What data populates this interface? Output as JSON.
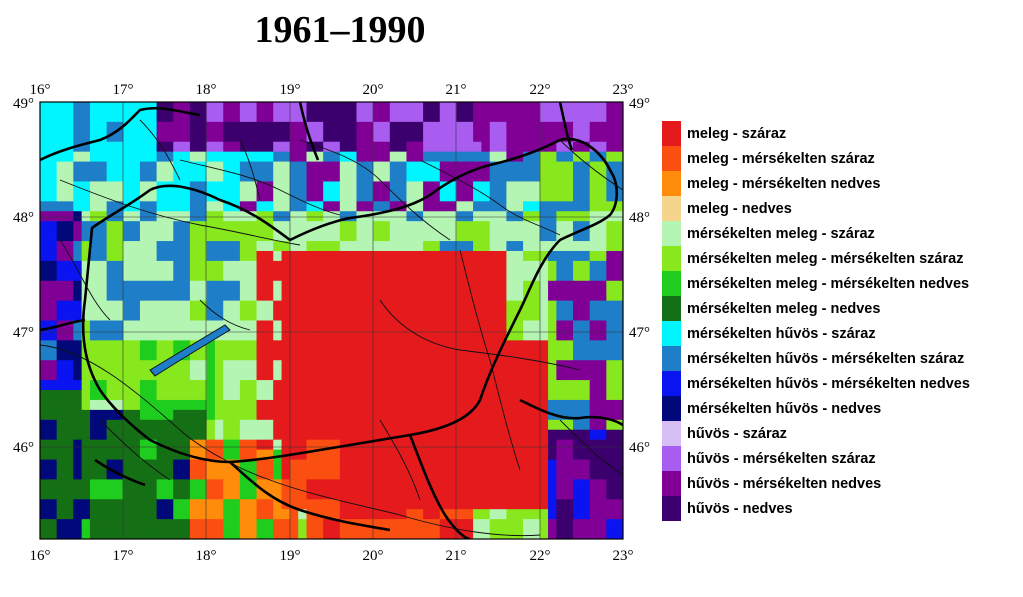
{
  "title": "1961–1990",
  "map": {
    "lon_ticks": [
      "16°",
      "17°",
      "18°",
      "19°",
      "20°",
      "21°",
      "22°",
      "23°"
    ],
    "lat_ticks": [
      "49°",
      "48°",
      "47°",
      "46°"
    ],
    "lon_range": [
      16,
      23
    ],
    "lat_range": [
      45.2,
      49
    ]
  },
  "legend": [
    {
      "label": "meleg - száraz",
      "color": "#e41a1c"
    },
    {
      "label": "meleg - mérsékelten száraz",
      "color": "#fa4f10"
    },
    {
      "label": "meleg - mérsékelten nedves",
      "color": "#ff8c0a"
    },
    {
      "label": "meleg - nedves",
      "color": "#f5d48c"
    },
    {
      "label": "mérsékelten meleg - száraz",
      "color": "#b4f5b4"
    },
    {
      "label": "mérsékelten meleg - mérsékelten száraz",
      "color": "#88e81e"
    },
    {
      "label": "mérsékelten meleg - mérsékelten nedves",
      "color": "#1ecd1e"
    },
    {
      "label": "mérsékelten meleg - nedves",
      "color": "#157015"
    },
    {
      "label": "mérsékelten hűvös - száraz",
      "color": "#00f5ff"
    },
    {
      "label": "mérsékelten hűvös - mérsékelten száraz",
      "color": "#1e7ec8"
    },
    {
      "label": "mérsékelten hűvös - mérsékelten nedves",
      "color": "#0a14f0"
    },
    {
      "label": "mérsékelten hűvös - nedves",
      "color": "#00087a"
    },
    {
      "label": "hűvös - száraz",
      "color": "#d7bff5"
    },
    {
      "label": "hűvös - mérsékelten száraz",
      "color": "#a95cf0"
    },
    {
      "label": "hűvös - mérsékelten nedves",
      "color": "#800096"
    },
    {
      "label": "hűvös - nedves",
      "color": "#3c006e"
    }
  ]
}
